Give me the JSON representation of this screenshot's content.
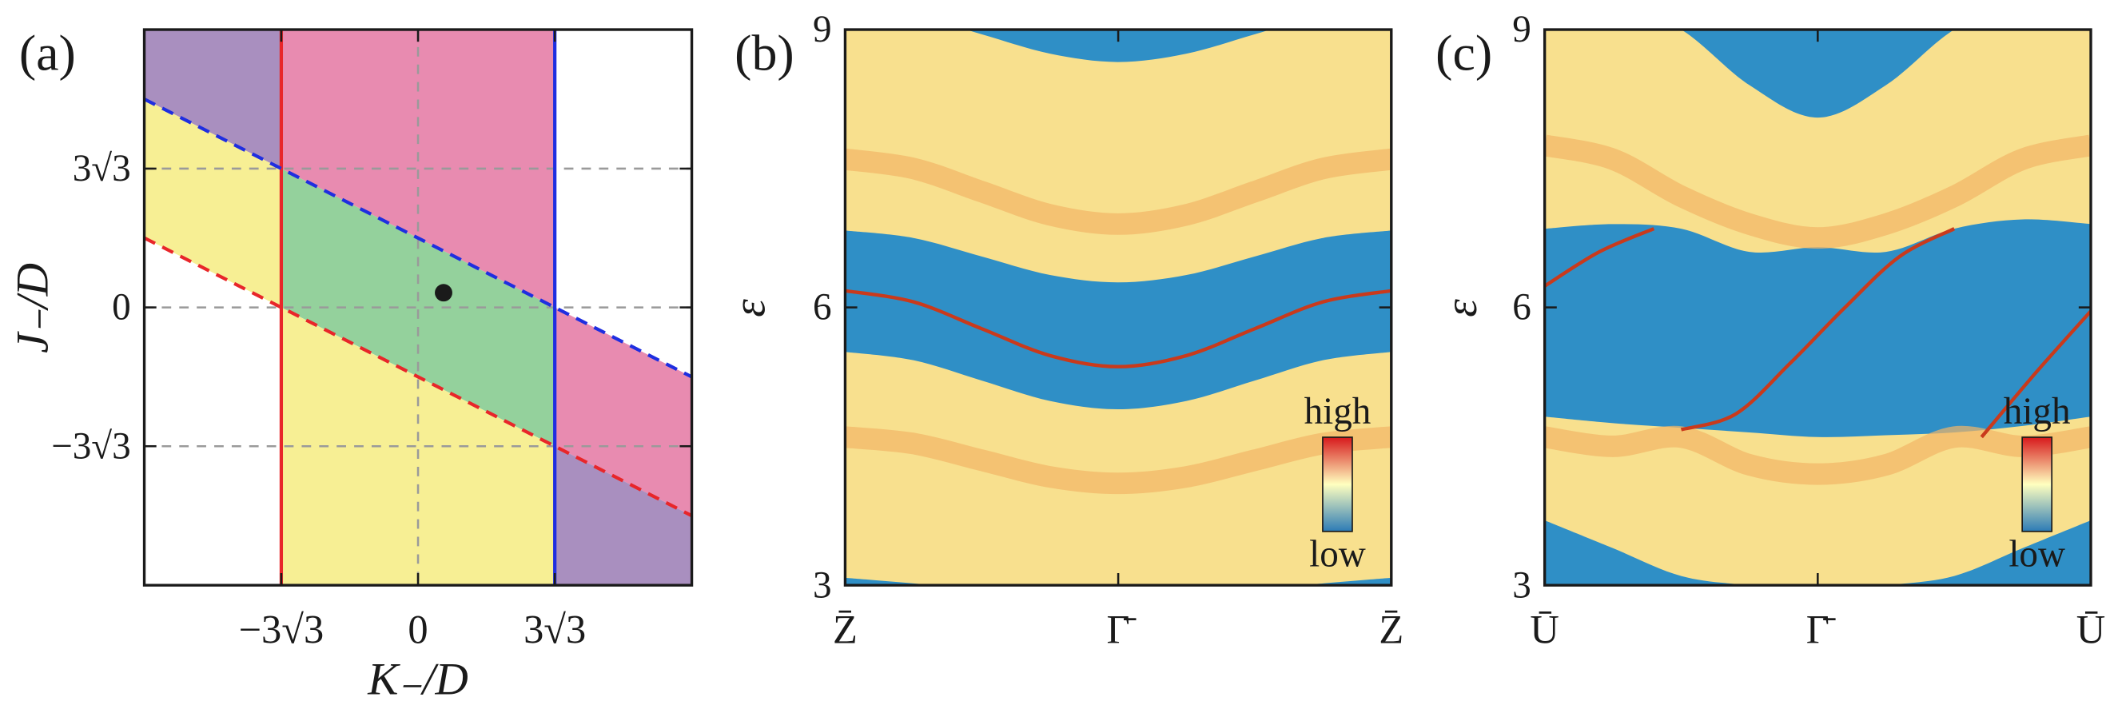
{
  "chart_data": [
    {
      "type": "phase-diagram",
      "panel_label": "(a)",
      "xlabel": "K₋/D",
      "ylabel": "J₋/D",
      "xlim": [
        -10.4,
        10.4
      ],
      "ylim": [
        -10.4,
        10.4
      ],
      "xticks": [
        {
          "value": -5.196,
          "label": "−3√3"
        },
        0,
        {
          "value": 5.196,
          "label": "3√3"
        }
      ],
      "yticks": [
        {
          "value": -5.196,
          "label": "−3√3"
        },
        0,
        {
          "value": 5.196,
          "label": "3√3"
        }
      ],
      "grid": true,
      "vertical_lines": [
        {
          "x": -5.196,
          "color": "#e8262a"
        },
        {
          "x": 5.196,
          "color": "#1f2ee0"
        }
      ],
      "dashed_lines": [
        {
          "slope": -0.5,
          "intercept": 2.598,
          "color": "#1f2ee0"
        },
        {
          "slope": -0.5,
          "intercept": -2.598,
          "color": "#e8262a"
        }
      ],
      "region_colors": [
        [
          "#a98fbf",
          "#e88bb0",
          "#ffffff"
        ],
        [
          "#f7ef94",
          "#94d19c",
          "#e88bb0"
        ],
        [
          "#ffffff",
          "#f7ef94",
          "#a98fbf"
        ]
      ],
      "point": {
        "x": 0.97,
        "y": 0.55,
        "color": "#1a1a1a"
      }
    },
    {
      "type": "spectrum",
      "panel_label": "(b)",
      "ylabel": "ε",
      "xlim": [
        -1,
        1
      ],
      "ylim": [
        3,
        9
      ],
      "yticks": [
        3,
        6,
        9
      ],
      "xticks": [
        {
          "value": -1,
          "label": "Z̄"
        },
        {
          "value": 0,
          "label": "Γ̄"
        },
        {
          "value": 1,
          "label": "Z̄"
        }
      ],
      "background_color": "#2f8fc6",
      "continuum_color": "#f8e08e",
      "stripe_color": "#f2b566",
      "surface_color": "#c93a1c",
      "k": [
        -1,
        -0.75,
        -0.5,
        -0.25,
        0,
        0.25,
        0.5,
        0.75,
        1
      ],
      "continua": [
        {
          "lower": [
            3.08,
            3.02,
            2.95,
            2.9,
            2.9,
            2.9,
            2.95,
            3.02,
            3.08
          ],
          "upper": [
            5.52,
            5.43,
            5.21,
            4.99,
            4.9,
            4.99,
            5.21,
            5.43,
            5.52
          ]
        },
        {
          "lower": [
            6.83,
            6.75,
            6.55,
            6.35,
            6.27,
            6.35,
            6.55,
            6.75,
            6.83
          ],
          "upper": [
            9.25,
            9.16,
            8.95,
            8.74,
            8.65,
            8.74,
            8.95,
            9.16,
            9.25
          ]
        }
      ],
      "stripes": [
        [
          7.6,
          7.5,
          7.25,
          7.0,
          6.9,
          7.0,
          7.25,
          7.5,
          7.6
        ],
        [
          4.6,
          4.53,
          4.35,
          4.17,
          4.1,
          4.17,
          4.35,
          4.53,
          4.6
        ]
      ],
      "surface_states": [
        {
          "x": [
            -1,
            -0.75,
            -0.5,
            -0.25,
            0,
            0.25,
            0.5,
            0.75,
            1
          ],
          "values": [
            6.18,
            6.06,
            5.77,
            5.48,
            5.36,
            5.48,
            5.77,
            6.06,
            6.18
          ]
        }
      ],
      "colorbar": {
        "top_label": "high",
        "bottom_label": "low",
        "colors": [
          "#2c7bb6",
          "#ffffbf",
          "#d7191c"
        ]
      }
    },
    {
      "type": "spectrum",
      "panel_label": "(c)",
      "ylabel": "ε",
      "xlim": [
        -1,
        1
      ],
      "ylim": [
        3,
        9
      ],
      "yticks": [
        3,
        6,
        9
      ],
      "xticks": [
        {
          "value": -1,
          "label": "Ū"
        },
        {
          "value": 0,
          "label": "Γ̄"
        },
        {
          "value": 1,
          "label": "Ū"
        }
      ],
      "background_color": "#2f8fc6",
      "continuum_color": "#f8e08e",
      "stripe_color": "#f2b566",
      "surface_color": "#c93a1c",
      "k": [
        -1,
        -0.75,
        -0.5,
        -0.25,
        0,
        0.25,
        0.5,
        0.75,
        1
      ],
      "continua": [
        {
          "lower": [
            3.7,
            3.4,
            3.1,
            3.0,
            2.95,
            3.0,
            3.1,
            3.4,
            3.7
          ],
          "upper": [
            4.82,
            4.75,
            4.7,
            4.65,
            4.6,
            4.62,
            4.65,
            4.72,
            4.82
          ]
        },
        {
          "lower": [
            6.85,
            6.9,
            6.85,
            6.6,
            6.65,
            6.6,
            6.85,
            6.95,
            6.9
          ],
          "upper": [
            9.6,
            9.3,
            9.0,
            8.4,
            8.05,
            8.4,
            9.0,
            9.3,
            9.6
          ]
        }
      ],
      "stripes": [
        [
          7.75,
          7.6,
          7.2,
          6.9,
          6.75,
          6.9,
          7.2,
          7.6,
          7.75
        ],
        [
          4.6,
          4.5,
          4.6,
          4.3,
          4.2,
          4.3,
          4.6,
          4.5,
          4.6
        ]
      ],
      "surface_states": [
        {
          "x": [
            -1,
            -0.8,
            -0.6
          ],
          "values": [
            6.23,
            6.6,
            6.85
          ]
        },
        {
          "x": [
            -0.5,
            -0.3,
            -0.1,
            0.1,
            0.3,
            0.5
          ],
          "values": [
            4.68,
            4.85,
            5.4,
            6.0,
            6.55,
            6.85
          ]
        },
        {
          "x": [
            0.6,
            0.8,
            1
          ],
          "values": [
            4.6,
            5.3,
            5.96
          ]
        }
      ],
      "colorbar": {
        "top_label": "high",
        "bottom_label": "low",
        "colors": [
          "#2c7bb6",
          "#ffffbf",
          "#d7191c"
        ]
      }
    }
  ]
}
